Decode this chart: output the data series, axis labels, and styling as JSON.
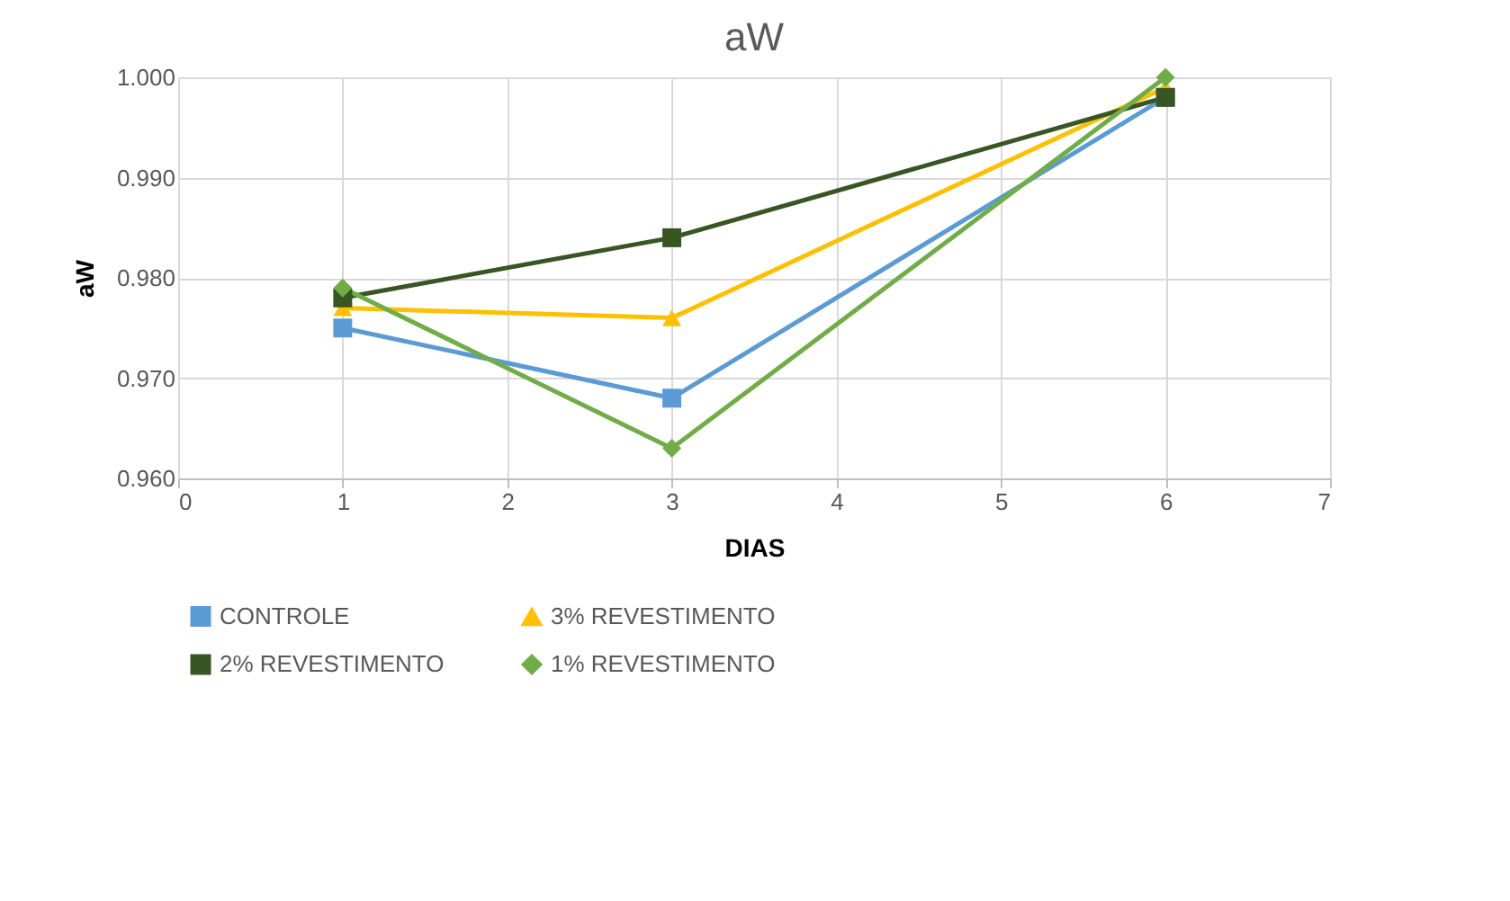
{
  "chart_data": {
    "type": "line",
    "title": "aW",
    "xlabel": "DIAS",
    "ylabel": "aW",
    "x": [
      1,
      3,
      6
    ],
    "series": [
      {
        "name": "CONTROLE",
        "color": "#5b9bd5",
        "marker": "square",
        "values": [
          0.975,
          0.968,
          0.998
        ]
      },
      {
        "name": "3% REVESTIMENTO",
        "color": "#ffc000",
        "marker": "triangle",
        "values": [
          0.977,
          0.976,
          0.999
        ]
      },
      {
        "name": "2% REVESTIMENTO",
        "color": "#375623",
        "marker": "square",
        "values": [
          0.978,
          0.984,
          0.998
        ]
      },
      {
        "name": "1% REVESTIMENTO",
        "color": "#70ad47",
        "marker": "diamond",
        "values": [
          0.979,
          0.963,
          1.0
        ]
      }
    ],
    "xlim": [
      0,
      7
    ],
    "xticks": [
      0,
      1,
      2,
      3,
      4,
      5,
      6,
      7
    ],
    "ylim": [
      0.96,
      1.0
    ],
    "yticks": [
      {
        "value": 0.96,
        "label": "0.960"
      },
      {
        "value": 0.97,
        "label": "0.970"
      },
      {
        "value": 0.98,
        "label": "0.980"
      },
      {
        "value": 0.99,
        "label": "0.990"
      },
      {
        "value": 1.0,
        "label": "1.000"
      }
    ],
    "grid": true,
    "legend": "bottom",
    "line_style": "solid"
  }
}
